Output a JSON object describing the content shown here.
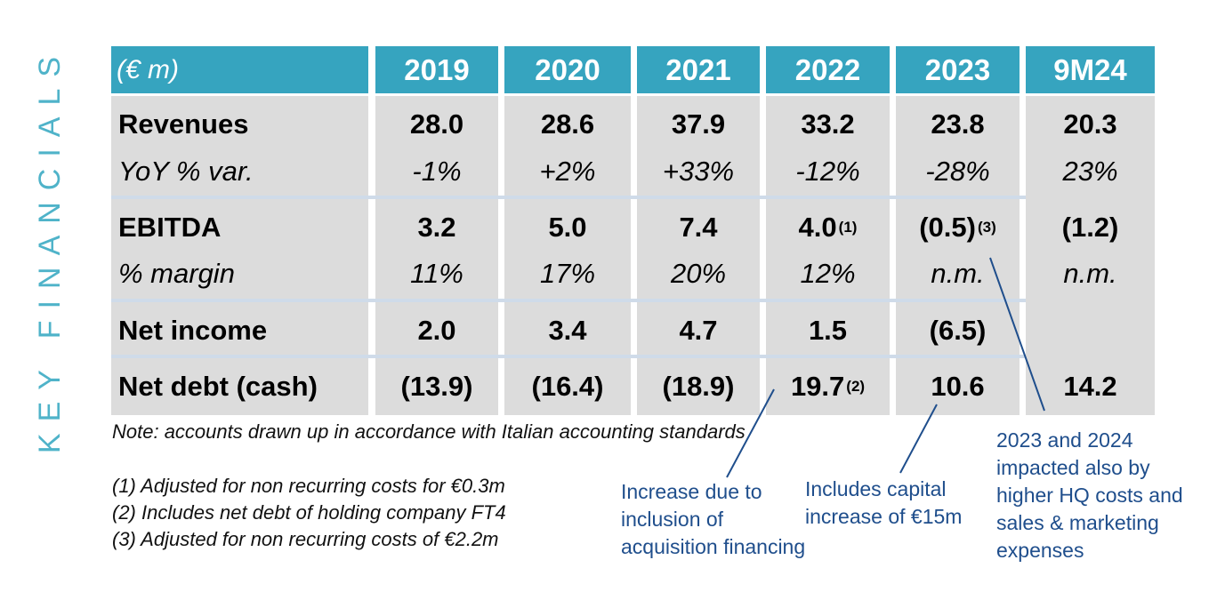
{
  "side_title": "KEY FINANCIALS",
  "table": {
    "unit_label": "(€ m)",
    "columns": [
      "2019",
      "2020",
      "2021",
      "2022",
      "2023",
      "9M24"
    ],
    "rows": [
      {
        "label": "Revenues",
        "values": [
          "28.0",
          "28.6",
          "37.9",
          "33.2",
          "23.8",
          "20.3"
        ]
      },
      {
        "label": "YoY % var.",
        "values": [
          "-1%",
          "+2%",
          "+33%",
          "-12%",
          "-28%",
          "23%"
        ]
      },
      {
        "label": "EBITDA",
        "values": [
          "3.2",
          "5.0",
          "7.4",
          "4.0",
          "(0.5)",
          "(1.2)"
        ]
      },
      {
        "label": "% margin",
        "values": [
          "11%",
          "17%",
          "20%",
          "12%",
          "n.m.",
          "n.m."
        ]
      },
      {
        "label": "Net income",
        "values": [
          "2.0",
          "3.4",
          "4.7",
          "1.5",
          "(6.5)",
          ""
        ]
      },
      {
        "label": "Net debt (cash)",
        "values": [
          "(13.9)",
          "(16.4)",
          "(18.9)",
          "19.7",
          "10.6",
          "14.2"
        ]
      }
    ],
    "footnote_marks": {
      "ebitda_2022": "(1)",
      "ebitda_2023": "(3)",
      "netdebt_2022": "(2)"
    }
  },
  "note": "Note: accounts drawn up in accordance with Italian accounting standards",
  "footnotes": [
    "(1)  Adjusted for non recurring costs for €0.3m",
    "(2)  Includes net debt of holding company FT4",
    "(3)  Adjusted for non recurring costs of €2.2m"
  ],
  "annotations": {
    "acquisition": [
      "Increase due to",
      "inclusion of",
      "acquisition financing"
    ],
    "capital": [
      "Includes capital",
      "increase of €15m"
    ],
    "hq_costs": [
      "2023 and 2024",
      "impacted also by",
      "higher HQ costs and",
      "sales & marketing",
      "expenses"
    ]
  },
  "colors": {
    "header": "#36a4bf",
    "body": "#dcdcdc",
    "side_title": "#4fb3c9",
    "annotation": "#1f4e8c"
  }
}
